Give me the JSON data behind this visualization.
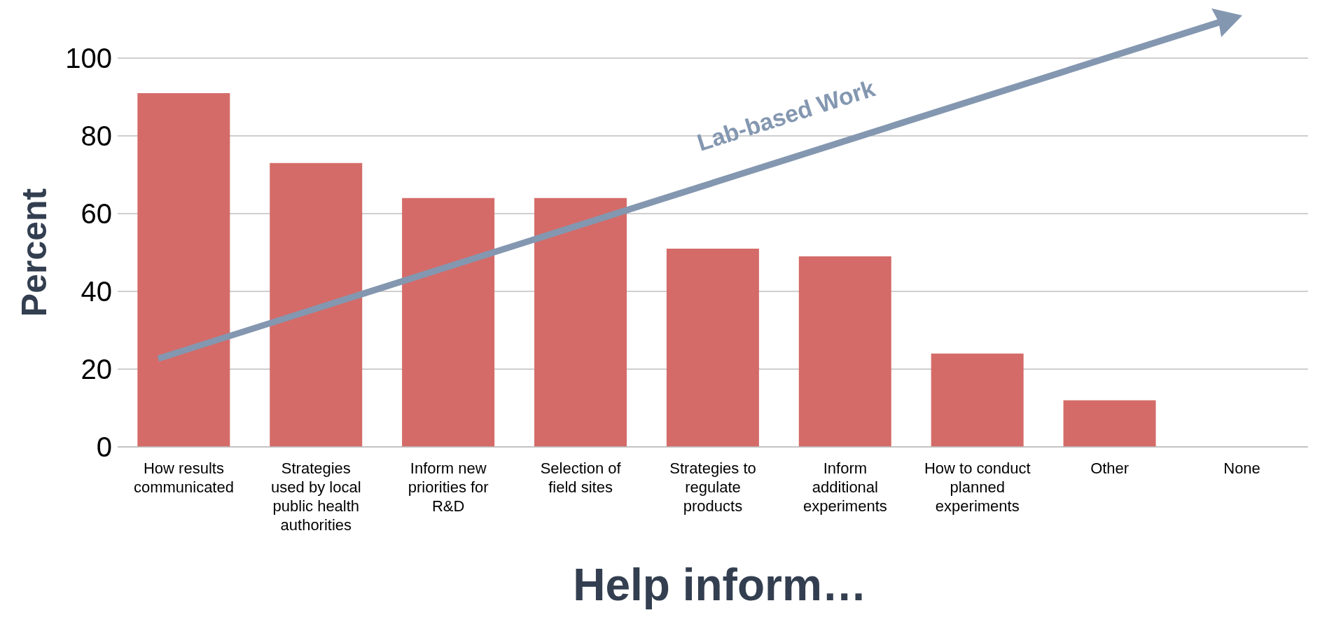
{
  "chart_data": {
    "type": "bar",
    "xlabel": "Help inform…",
    "ylabel": "Percent",
    "categories": [
      "How results communicated",
      "Strategies used by local public health authorities",
      "Inform new priorities for R&D",
      "Selection of field sites",
      "Strategies to regulate products",
      "Inform additional experiments",
      "How to conduct planned experiments",
      "Other",
      "None"
    ],
    "values": [
      91,
      73,
      64,
      64,
      51,
      49,
      24,
      12,
      0
    ],
    "color": "#d46b68",
    "ylim": [
      0,
      100
    ],
    "yticks": [
      0,
      20,
      40,
      60,
      80,
      100
    ],
    "grid": "y",
    "legend": false,
    "annotations": [
      "Lab-based Work"
    ]
  }
}
